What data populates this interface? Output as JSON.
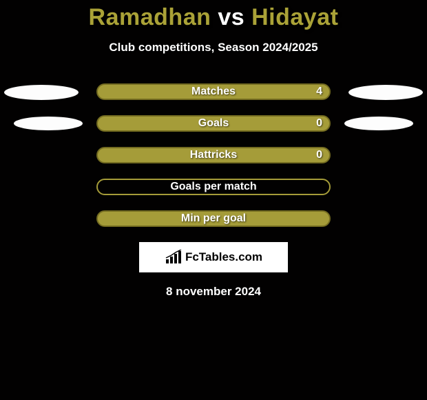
{
  "background_color": "#020101",
  "title": {
    "player1": "Ramadhan",
    "vs": "vs",
    "player2": "Hidayat",
    "player1_color": "#aaa237",
    "vs_color": "#ffffff",
    "player2_color": "#aaa237",
    "fontsize": 34
  },
  "subtitle": {
    "text": "Club competitions, Season 2024/2025",
    "fontsize": 17,
    "color": "#ffffff"
  },
  "ellipse_style": {
    "width": 108,
    "height": 22,
    "color": "#fdfdfd",
    "small_width": 100,
    "small_height": 20
  },
  "rows": [
    {
      "label": "Matches",
      "value_right": "4",
      "show_values": true,
      "left_ellipse": "large",
      "right_ellipse": "large",
      "bar_fill": "#a59c39",
      "bar_border": "#746c21"
    },
    {
      "label": "Goals",
      "value_right": "0",
      "show_values": true,
      "left_ellipse": "small",
      "right_ellipse": "small",
      "bar_fill": "#a59c39",
      "bar_border": "#746c21"
    },
    {
      "label": "Hattricks",
      "value_right": "0",
      "show_values": true,
      "left_ellipse": "none",
      "right_ellipse": "none",
      "bar_fill": "#a59c39",
      "bar_border": "#746c21"
    },
    {
      "label": "Goals per match",
      "value_right": "",
      "show_values": false,
      "left_ellipse": "none",
      "right_ellipse": "none",
      "bar_fill": "transparent",
      "bar_border": "#a59c39"
    },
    {
      "label": "Min per goal",
      "value_right": "",
      "show_values": false,
      "left_ellipse": "none",
      "right_ellipse": "none",
      "bar_fill": "#a59c39",
      "bar_border": "#746c21"
    }
  ],
  "brand": {
    "text": "FcTables.com",
    "background": "#ffffff",
    "text_color": "#000000"
  },
  "datestamp": {
    "text": "8 november 2024",
    "color": "#ffffff",
    "fontsize": 17
  }
}
